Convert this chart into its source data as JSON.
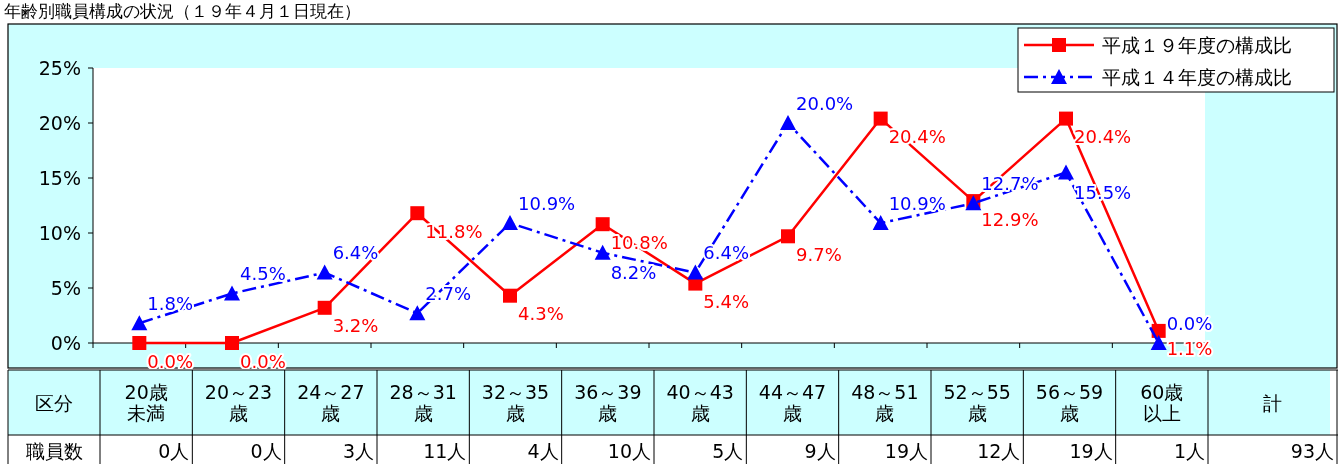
{
  "chart_data": {
    "type": "line",
    "title": "年齢別職員構成の状況（１９年４月１日現在）",
    "categories": [
      "20歳未満",
      "20～23歳",
      "24～27歳",
      "28～31歳",
      "32～35歳",
      "36～39歳",
      "40～43歳",
      "44～47歳",
      "48～51歳",
      "52～55歳",
      "56～59歳",
      "60歳以上"
    ],
    "series": [
      {
        "name": "平成１９年度の構成比",
        "color": "#ff0000",
        "marker": "square",
        "line_style": "solid",
        "values": [
          0.0,
          0.0,
          3.2,
          11.8,
          4.3,
          10.8,
          5.4,
          9.7,
          20.4,
          12.9,
          20.4,
          1.1
        ],
        "value_labels": [
          "0.0%",
          "0.0%",
          "3.2%",
          "11.8%",
          "4.3%",
          "10.8%",
          "5.4%",
          "9.7%",
          "20.4%",
          "12.9%",
          "20.4%",
          "1.1%"
        ]
      },
      {
        "name": "平成１４年度の構成比",
        "color": "#0000ff",
        "marker": "triangle",
        "line_style": "dashed",
        "values": [
          1.8,
          4.5,
          6.4,
          2.7,
          10.9,
          8.2,
          6.4,
          20.0,
          10.9,
          12.7,
          15.5,
          0.0
        ],
        "value_labels": [
          "1.8%",
          "4.5%",
          "6.4%",
          "2.7%",
          "10.9%",
          "8.2%",
          "6.4%",
          "20.0%",
          "10.9%",
          "12.7%",
          "15.5%",
          "0.0%"
        ]
      }
    ],
    "ylim": [
      0,
      25
    ],
    "yticks": [
      {
        "value": 0,
        "label": "0%"
      },
      {
        "value": 5,
        "label": "5%"
      },
      {
        "value": 10,
        "label": "10%"
      },
      {
        "value": 15,
        "label": "15%"
      },
      {
        "value": 20,
        "label": "20%"
      },
      {
        "value": 25,
        "label": "25%"
      }
    ],
    "legend": "top right",
    "annotations": [
      "区分",
      "計",
      "職員数",
      "0人",
      "0人",
      "3人",
      "11人",
      "4人",
      "10人",
      "5人",
      "9人",
      "19人",
      "12人",
      "19人",
      "1人",
      "93人"
    ]
  }
}
